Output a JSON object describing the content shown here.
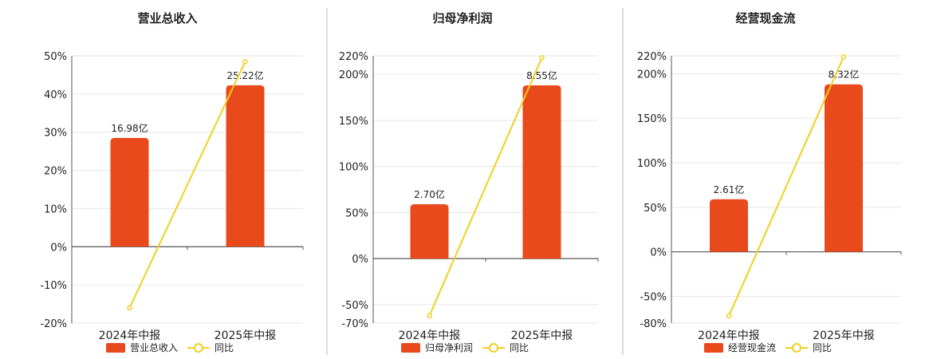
{
  "colors": {
    "bar": "#e84a1c",
    "line": "#f0d020",
    "grid": "#e6e6e6",
    "axis": "#555555",
    "text": "#222222",
    "divider": "#bbbbbb"
  },
  "chart_data": [
    {
      "type": "bar",
      "title": "营业总收入",
      "categories": [
        "2024年中报",
        "2025年中报"
      ],
      "bar_series": {
        "name": "营业总收入",
        "values": [
          28.5,
          42.3
        ],
        "labels": [
          "16.98亿",
          "25.22亿"
        ]
      },
      "line_series": {
        "name": "同比",
        "values": [
          -16,
          48.5
        ]
      },
      "ylim": [
        -20,
        50
      ],
      "yticks": [
        -20,
        -10,
        0,
        10,
        20,
        30,
        40,
        50
      ],
      "ytick_labels": [
        "-20%",
        "-10%",
        "0%",
        "10%",
        "20%",
        "30%",
        "40%",
        "50%"
      ],
      "grid": true,
      "legend": "bottom"
    },
    {
      "type": "bar",
      "title": "归母净利润",
      "categories": [
        "2024年中报",
        "2025年中报"
      ],
      "bar_series": {
        "name": "归母净利润",
        "values": [
          59,
          188
        ],
        "labels": [
          "2.70亿",
          "8.55亿"
        ]
      },
      "line_series": {
        "name": "同比",
        "values": [
          -62,
          218
        ]
      },
      "ylim": [
        -70,
        220
      ],
      "yticks": [
        -70,
        -50,
        0,
        50,
        100,
        150,
        200,
        220
      ],
      "ytick_labels": [
        "-70%",
        "-50%",
        "0%",
        "50%",
        "100%",
        "150%",
        "200%",
        "220%"
      ],
      "grid": true,
      "legend": "bottom"
    },
    {
      "type": "bar",
      "title": "经营现金流",
      "categories": [
        "2024年中报",
        "2025年中报"
      ],
      "bar_series": {
        "name": "经营现金流",
        "values": [
          59,
          188
        ],
        "labels": [
          "2.61亿",
          "8.32亿"
        ]
      },
      "line_series": {
        "name": "同比",
        "values": [
          -72,
          219
        ]
      },
      "ylim": [
        -80,
        220
      ],
      "yticks": [
        -80,
        -50,
        0,
        50,
        100,
        150,
        200,
        220
      ],
      "ytick_labels": [
        "-80%",
        "-50%",
        "0%",
        "50%",
        "100%",
        "150%",
        "200%",
        "220%"
      ],
      "grid": true,
      "legend": "bottom"
    }
  ]
}
